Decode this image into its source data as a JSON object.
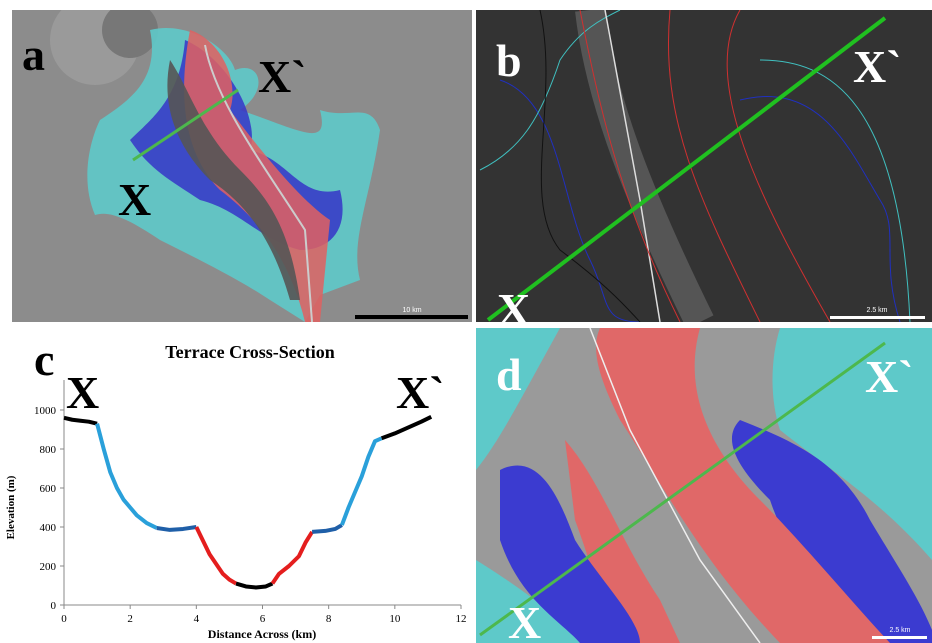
{
  "panels": [
    {
      "letter": "a",
      "start_label": "X",
      "end_label": "X`",
      "scale_label": "10 km"
    },
    {
      "letter": "b",
      "start_label": "X",
      "end_label": "X`",
      "scale_label": "2.5 km"
    },
    {
      "letter": "d",
      "start_label": "X",
      "end_label": "X`",
      "scale_label": "2.5 km"
    }
  ],
  "chart_data": {
    "type": "line",
    "panel_letter": "c",
    "start_label": "X",
    "end_label": "X`",
    "title": "Terrace Cross-Section",
    "x_label": "Distance Across (km)",
    "y_label": "Elevation (m)",
    "xlim": [
      0,
      12
    ],
    "xticks": [
      0,
      2,
      4,
      6,
      8,
      10,
      12
    ],
    "ylim": [
      0,
      1000
    ],
    "yticks": [
      0,
      200,
      400,
      600,
      800,
      1000
    ],
    "series": [
      {
        "color": "#000000",
        "x": [
          0,
          0.25,
          0.5,
          0.75,
          1.0
        ],
        "values": [
          960,
          950,
          945,
          940,
          930
        ]
      },
      {
        "color": "#2aa0da",
        "x": [
          1.0,
          1.2,
          1.4,
          1.6,
          1.8,
          2.0,
          2.2,
          2.5,
          2.8
        ],
        "values": [
          930,
          800,
          680,
          600,
          540,
          500,
          460,
          420,
          395
        ]
      },
      {
        "color": "#1f5fa8",
        "x": [
          2.8,
          3.2,
          3.6,
          4.0
        ],
        "values": [
          395,
          385,
          390,
          400
        ]
      },
      {
        "color": "#e41e1e",
        "x": [
          4.0,
          4.2,
          4.4,
          4.6,
          4.8,
          5.0,
          5.2
        ],
        "values": [
          400,
          330,
          260,
          210,
          160,
          130,
          110
        ]
      },
      {
        "color": "#000000",
        "x": [
          5.2,
          5.5,
          5.8,
          6.1,
          6.3
        ],
        "values": [
          110,
          95,
          90,
          95,
          110
        ]
      },
      {
        "color": "#e41e1e",
        "x": [
          6.3,
          6.5,
          6.8,
          7.1,
          7.3,
          7.5
        ],
        "values": [
          110,
          160,
          200,
          250,
          320,
          375
        ]
      },
      {
        "color": "#1f5fa8",
        "x": [
          7.5,
          7.9,
          8.2,
          8.4
        ],
        "values": [
          375,
          380,
          390,
          410
        ]
      },
      {
        "color": "#2aa0da",
        "x": [
          8.4,
          8.6,
          8.8,
          9.0,
          9.2,
          9.4,
          9.6
        ],
        "values": [
          410,
          500,
          580,
          660,
          760,
          840,
          855
        ]
      },
      {
        "color": "#000000",
        "x": [
          9.6,
          10.0,
          10.4,
          10.8,
          11.1
        ],
        "values": [
          855,
          880,
          910,
          940,
          965
        ]
      }
    ]
  }
}
